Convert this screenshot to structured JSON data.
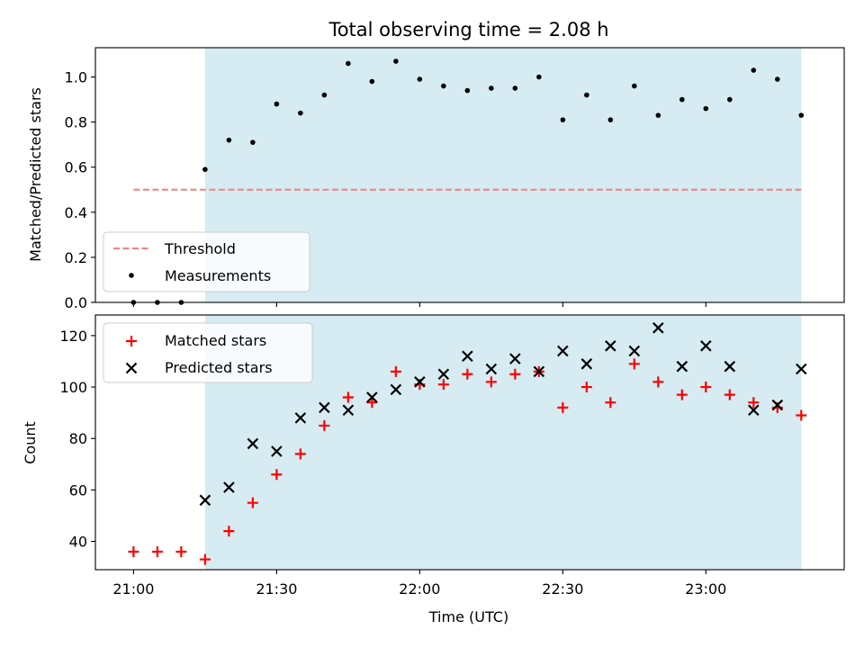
{
  "chart_data": [
    {
      "type": "scatter",
      "title": "Total observing time = 2.08 h",
      "ylabel": "Matched/Predicted stars",
      "xlabel": "",
      "ylim": [
        0,
        1.13
      ],
      "yticks": [
        0.0,
        0.2,
        0.4,
        0.6,
        0.8,
        1.0
      ],
      "ytick_labels": [
        "0.0",
        "0.2",
        "0.4",
        "0.6",
        "0.8",
        "1.0"
      ],
      "shaded_region": {
        "from": "21:15",
        "to": "23:20",
        "color": "#add8e6"
      },
      "threshold": {
        "name": "Threshold",
        "value": 0.5,
        "from": "21:00",
        "to": "23:20",
        "color": "#f08080"
      },
      "series": [
        {
          "name": "Measurements",
          "marker": "dot",
          "color": "#000000",
          "x": [
            "21:00",
            "21:05",
            "21:10",
            "21:15",
            "21:20",
            "21:25",
            "21:30",
            "21:35",
            "21:40",
            "21:45",
            "21:50",
            "21:55",
            "22:00",
            "22:05",
            "22:10",
            "22:15",
            "22:20",
            "22:25",
            "22:30",
            "22:35",
            "22:40",
            "22:45",
            "22:50",
            "22:55",
            "23:00",
            "23:05",
            "23:10",
            "23:15",
            "23:20"
          ],
          "values": [
            0.0,
            0.0,
            0.0,
            0.59,
            0.72,
            0.71,
            0.88,
            0.84,
            0.92,
            1.06,
            0.98,
            1.07,
            0.99,
            0.96,
            0.94,
            0.95,
            0.95,
            1.0,
            0.81,
            0.92,
            0.81,
            0.96,
            0.83,
            0.9,
            0.86,
            0.9,
            1.03,
            0.99,
            0.83
          ]
        }
      ],
      "legend": {
        "placement": "lower-left",
        "entries": [
          "Threshold",
          "Measurements"
        ]
      }
    },
    {
      "type": "scatter",
      "title": "",
      "xlabel": "Time (UTC)",
      "ylabel": "Count",
      "xlim": [
        "20:52",
        "23:29"
      ],
      "ylim": [
        29,
        128
      ],
      "xticks": [
        "21:00",
        "21:30",
        "22:00",
        "22:30",
        "23:00"
      ],
      "yticks": [
        40,
        60,
        80,
        100,
        120
      ],
      "ytick_labels": [
        "40",
        "60",
        "80",
        "100",
        "120"
      ],
      "shaded_region": {
        "from": "21:15",
        "to": "23:20",
        "color": "#add8e6"
      },
      "series": [
        {
          "name": "Matched stars",
          "marker": "plus",
          "color": "#ff0000",
          "x": [
            "21:00",
            "21:05",
            "21:10",
            "21:15",
            "21:20",
            "21:25",
            "21:30",
            "21:35",
            "21:40",
            "21:45",
            "21:50",
            "21:55",
            "22:00",
            "22:05",
            "22:10",
            "22:15",
            "22:20",
            "22:25",
            "22:30",
            "22:35",
            "22:40",
            "22:45",
            "22:50",
            "22:55",
            "23:00",
            "23:05",
            "23:10",
            "23:15",
            "23:20"
          ],
          "values": [
            36,
            36,
            36,
            33,
            44,
            55,
            66,
            74,
            85,
            96,
            94,
            106,
            101,
            101,
            105,
            102,
            105,
            106,
            92,
            100,
            94,
            109,
            102,
            97,
            100,
            97,
            94,
            92,
            89
          ]
        },
        {
          "name": "Predicted stars",
          "marker": "x",
          "color": "#000000",
          "x": [
            "21:15",
            "21:20",
            "21:25",
            "21:30",
            "21:35",
            "21:40",
            "21:45",
            "21:50",
            "21:55",
            "22:00",
            "22:05",
            "22:10",
            "22:15",
            "22:20",
            "22:25",
            "22:30",
            "22:35",
            "22:40",
            "22:45",
            "22:50",
            "22:55",
            "23:00",
            "23:05",
            "23:10",
            "23:15",
            "23:20"
          ],
          "values": [
            56,
            61,
            78,
            75,
            88,
            92,
            91,
            96,
            99,
            102,
            105,
            112,
            107,
            111,
            106,
            114,
            109,
            116,
            114,
            123,
            108,
            116,
            108,
            91,
            93,
            107
          ]
        }
      ],
      "legend": {
        "placement": "top-left",
        "entries": [
          "Matched stars",
          "Predicted stars"
        ]
      }
    }
  ]
}
